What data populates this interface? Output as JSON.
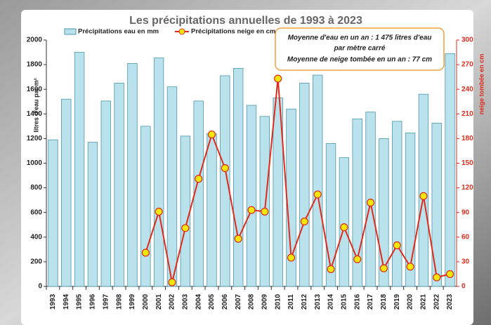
{
  "chart_data": {
    "type": "bar-line",
    "title": "Les précipitations annuelles de 1993 à 2023",
    "y_label": "litres d'eau par m²",
    "y2_label": "neige tombée en cm",
    "annotation_lines": [
      "Moyenne d'eau en un an : 1 475 litres d'eau",
      "par mètre carré",
      "Moyenne de neige tombée en un an : 77 cm"
    ],
    "categories": [
      "1993",
      "1994",
      "1995",
      "1996",
      "1997",
      "1998",
      "1999",
      "2000",
      "2001",
      "2002",
      "2003",
      "2004",
      "2005",
      "2006",
      "2007",
      "2008",
      "2009",
      "2010",
      "2011",
      "2012",
      "2013",
      "2014",
      "2015",
      "2016",
      "2017",
      "2018",
      "2019",
      "2020",
      "2021",
      "2022",
      "2023"
    ],
    "series": [
      {
        "name": "Précipitations eau en mm",
        "color": "#b9e2ec",
        "type": "bar",
        "values": [
          1190,
          1520,
          1900,
          1170,
          1505,
          1650,
          1810,
          1300,
          1855,
          1620,
          1220,
          1505,
          1240,
          1710,
          1770,
          1470,
          1380,
          1530,
          1440,
          1650,
          1715,
          1160,
          1045,
          1360,
          1415,
          1200,
          1340,
          1245,
          1560,
          1325,
          1890
        ]
      },
      {
        "name": "Précipitations neige en cm",
        "color": "#e02a1c",
        "type": "line",
        "axis": "y2",
        "values": [
          null,
          null,
          null,
          null,
          null,
          null,
          null,
          41,
          91,
          5,
          71,
          131,
          185,
          144,
          58,
          93,
          91,
          253,
          35,
          79,
          112,
          21,
          72,
          33,
          102,
          22,
          50,
          24,
          110,
          11,
          15
        ]
      }
    ],
    "ylim": [
      0,
      2000
    ],
    "yticks": [
      0,
      200,
      400,
      600,
      800,
      1000,
      1200,
      1400,
      1600,
      1800,
      2000
    ],
    "y2lim": [
      0,
      300
    ],
    "y2ticks": [
      0,
      30,
      60,
      90,
      120,
      150,
      180,
      210,
      240,
      270,
      300
    ],
    "marker_color": "#f4e60a",
    "grid": false
  }
}
